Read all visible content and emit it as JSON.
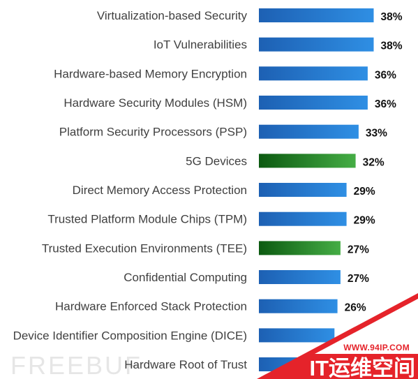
{
  "chart_data": {
    "type": "bar",
    "orientation": "horizontal",
    "title": "",
    "xlabel": "",
    "ylabel": "",
    "categories": [
      "Virtualization-based Security",
      "IoT Vulnerabilities",
      "Hardware-based Memory Encryption",
      "Hardware Security Modules (HSM)",
      "Platform Security Processors (PSP)",
      "5G Devices",
      "Direct Memory Access Protection",
      "Trusted Platform Module Chips (TPM)",
      "Trusted Execution Environments (TEE)",
      "Confidential Computing",
      "Hardware Enforced Stack Protection",
      "Device Identifier Composition Engine (DICE)",
      "Hardware Root of Trust"
    ],
    "values": [
      38,
      38,
      36,
      36,
      33,
      32,
      29,
      29,
      27,
      27,
      26,
      25,
      25
    ],
    "data_labels": [
      "38%",
      "38%",
      "36%",
      "36%",
      "33%",
      "32%",
      "29%",
      "29%",
      "27%",
      "27%",
      "26%",
      null,
      null
    ],
    "bar_colors": [
      "blue",
      "blue",
      "blue",
      "blue",
      "blue",
      "green",
      "blue",
      "blue",
      "green",
      "blue",
      "blue",
      "blue",
      "blue"
    ],
    "palette": {
      "blue": [
        "#1d60b3",
        "#2f8fe4"
      ],
      "green": [
        "#0c5a11",
        "#45ad45"
      ]
    },
    "grid": false,
    "legend": "none"
  },
  "text_colors": {
    "category": "#404040",
    "value": "#111111"
  },
  "watermarks": {
    "freebuf": "FREEBUF",
    "freebuf_color": "#e6e6e6",
    "site_url": "WWW.94IP.COM",
    "brand": "IT运维空间",
    "red": "#e5232a",
    "brand_text_color": "#ffffff"
  }
}
